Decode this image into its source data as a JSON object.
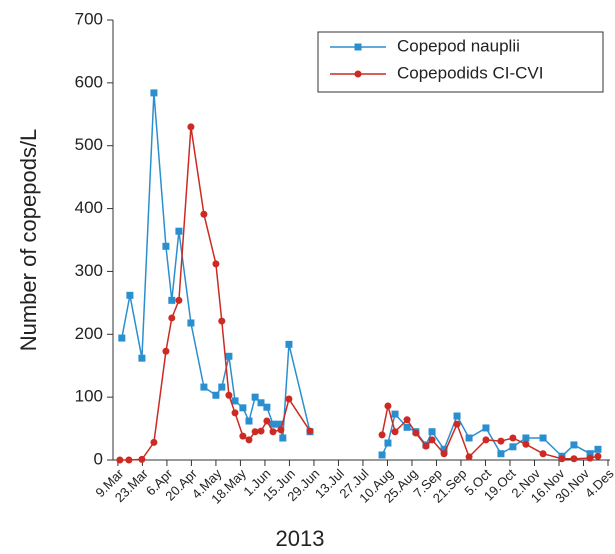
{
  "chart_data": {
    "type": "line",
    "ylabel": "Number of copepods/L",
    "xlabel": "2013",
    "ylim": [
      0,
      700
    ],
    "yticks": [
      0,
      100,
      200,
      300,
      400,
      500,
      600,
      700
    ],
    "xlim": [
      -0.2,
      20
    ],
    "xticks": [
      {
        "value": 0,
        "label": "9.Mar"
      },
      {
        "value": 1,
        "label": "23.Mar"
      },
      {
        "value": 2,
        "label": "6.Apr"
      },
      {
        "value": 3,
        "label": "20.Apr"
      },
      {
        "value": 4,
        "label": "4.May"
      },
      {
        "value": 5,
        "label": "18.May"
      },
      {
        "value": 6,
        "label": "1.Jun"
      },
      {
        "value": 7,
        "label": "15.Jun"
      },
      {
        "value": 8,
        "label": "29.Jun"
      },
      {
        "value": 9,
        "label": "13.Jul"
      },
      {
        "value": 10,
        "label": "27.Jul"
      },
      {
        "value": 11,
        "label": "10.Aug"
      },
      {
        "value": 12,
        "label": "25.Aug"
      },
      {
        "value": 13,
        "label": "7.Sep"
      },
      {
        "value": 14,
        "label": "21.Sep"
      },
      {
        "value": 15,
        "label": "5.Oct"
      },
      {
        "value": 16,
        "label": "19.Oct"
      },
      {
        "value": 17,
        "label": "2.Nov"
      },
      {
        "value": 18,
        "label": "16.Nov"
      },
      {
        "value": 19,
        "label": "30.Nov"
      },
      {
        "value": 20,
        "label": "4.Des"
      }
    ],
    "legend": "upper right",
    "series": [
      {
        "name": "Copepod nauplii",
        "color": "#2b8fcf",
        "marker": "square",
        "x": [
          0.16,
          0.49,
          0.98,
          1.47,
          1.96,
          2.2,
          2.49,
          2.98,
          3.51,
          4.0,
          4.24,
          4.53,
          4.78,
          5.1,
          5.35,
          5.6,
          5.84,
          6.08,
          6.33,
          6.57,
          6.73,
          6.98,
          7.84,
          null,
          10.78,
          11.02,
          11.31,
          11.8,
          12.16,
          12.57,
          12.82,
          13.31,
          13.84,
          14.33,
          15.02,
          15.63,
          16.12,
          16.65,
          17.35,
          18.12,
          18.61,
          19.27,
          19.59
        ],
        "values": [
          194,
          262,
          162,
          584,
          340,
          254,
          364,
          218,
          116,
          103,
          116,
          165,
          94,
          83,
          62,
          100,
          91,
          84,
          57,
          57,
          35,
          184,
          45,
          null,
          8,
          27,
          73,
          52,
          45,
          24,
          45,
          17,
          70,
          35,
          51,
          10,
          21,
          35,
          35,
          6,
          24,
          10,
          17
        ]
      },
      {
        "name": "Copepodids CI-CVI",
        "color": "#cc2a22",
        "marker": "circle",
        "x": [
          0.08,
          0.45,
          0.98,
          1.47,
          1.96,
          2.2,
          2.49,
          2.98,
          3.51,
          4.0,
          4.24,
          4.53,
          4.78,
          5.1,
          5.35,
          5.6,
          5.84,
          6.08,
          6.33,
          6.65,
          6.98,
          7.84,
          null,
          10.78,
          11.02,
          11.31,
          11.8,
          12.16,
          12.57,
          12.82,
          13.31,
          13.84,
          14.33,
          15.02,
          15.63,
          16.12,
          16.65,
          17.35,
          18.12,
          18.61,
          19.27,
          19.59
        ],
        "values": [
          0,
          0,
          1,
          28,
          173,
          226,
          254,
          530,
          391,
          312,
          221,
          103,
          75,
          38,
          32,
          45,
          46,
          62,
          45,
          48,
          97,
          46,
          null,
          40,
          86,
          45,
          64,
          43,
          22,
          32,
          10,
          57,
          5,
          32,
          30,
          35,
          25,
          10,
          2,
          2,
          3,
          6
        ]
      }
    ]
  }
}
